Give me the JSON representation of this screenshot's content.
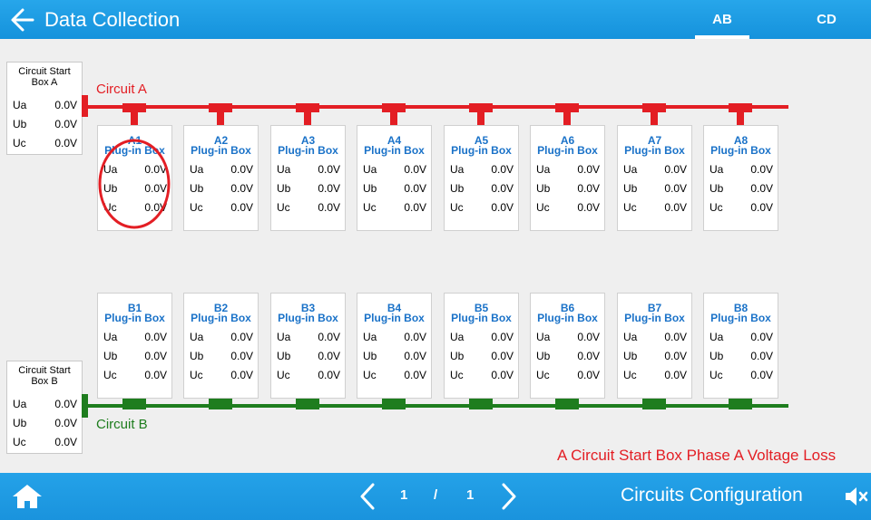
{
  "header": {
    "title": "Data Collection",
    "tabs": [
      {
        "label": "AB",
        "active": true
      },
      {
        "label": "CD",
        "active": false
      }
    ]
  },
  "colors": {
    "header": "#1a9ae2",
    "circuit_a": "#e31e24",
    "circuit_b": "#1e7d1e",
    "box_text": "#1a72c8",
    "ellipse": "#e31e24"
  },
  "start_boxes": [
    {
      "id": "a",
      "title_line1": "Circuit Start",
      "title_line2": "Box A",
      "phases": [
        {
          "label": "Ua",
          "value": "0.0V"
        },
        {
          "label": "Ub",
          "value": "0.0V"
        },
        {
          "label": "Uc",
          "value": "0.0V"
        }
      ]
    },
    {
      "id": "b",
      "title_line1": "Circuit Start",
      "title_line2": "Box B",
      "phases": [
        {
          "label": "Ua",
          "value": "0.0V"
        },
        {
          "label": "Ub",
          "value": "0.0V"
        },
        {
          "label": "Uc",
          "value": "0.0V"
        }
      ]
    }
  ],
  "circuits": [
    {
      "label": "Circuit A",
      "boxes": [
        {
          "id": "A1",
          "name": "Plug-in Box",
          "phases": [
            {
              "label": "Ua",
              "value": "0.0V"
            },
            {
              "label": "Ub",
              "value": "0.0V"
            },
            {
              "label": "Uc",
              "value": "0.0V"
            }
          ]
        },
        {
          "id": "A2",
          "name": "Plug-in Box",
          "phases": [
            {
              "label": "Ua",
              "value": "0.0V"
            },
            {
              "label": "Ub",
              "value": "0.0V"
            },
            {
              "label": "Uc",
              "value": "0.0V"
            }
          ]
        },
        {
          "id": "A3",
          "name": "Plug-in Box",
          "phases": [
            {
              "label": "Ua",
              "value": "0.0V"
            },
            {
              "label": "Ub",
              "value": "0.0V"
            },
            {
              "label": "Uc",
              "value": "0.0V"
            }
          ]
        },
        {
          "id": "A4",
          "name": "Plug-in Box",
          "phases": [
            {
              "label": "Ua",
              "value": "0.0V"
            },
            {
              "label": "Ub",
              "value": "0.0V"
            },
            {
              "label": "Uc",
              "value": "0.0V"
            }
          ]
        },
        {
          "id": "A5",
          "name": "Plug-in Box",
          "phases": [
            {
              "label": "Ua",
              "value": "0.0V"
            },
            {
              "label": "Ub",
              "value": "0.0V"
            },
            {
              "label": "Uc",
              "value": "0.0V"
            }
          ]
        },
        {
          "id": "A6",
          "name": "Plug-in Box",
          "phases": [
            {
              "label": "Ua",
              "value": "0.0V"
            },
            {
              "label": "Ub",
              "value": "0.0V"
            },
            {
              "label": "Uc",
              "value": "0.0V"
            }
          ]
        },
        {
          "id": "A7",
          "name": "Plug-in Box",
          "phases": [
            {
              "label": "Ua",
              "value": "0.0V"
            },
            {
              "label": "Ub",
              "value": "0.0V"
            },
            {
              "label": "Uc",
              "value": "0.0V"
            }
          ]
        },
        {
          "id": "A8",
          "name": "Plug-in Box",
          "phases": [
            {
              "label": "Ua",
              "value": "0.0V"
            },
            {
              "label": "Ub",
              "value": "0.0V"
            },
            {
              "label": "Uc",
              "value": "0.0V"
            }
          ]
        }
      ]
    },
    {
      "label": "Circuit B",
      "boxes": [
        {
          "id": "B1",
          "name": "Plug-in Box",
          "phases": [
            {
              "label": "Ua",
              "value": "0.0V"
            },
            {
              "label": "Ub",
              "value": "0.0V"
            },
            {
              "label": "Uc",
              "value": "0.0V"
            }
          ]
        },
        {
          "id": "B2",
          "name": "Plug-in Box",
          "phases": [
            {
              "label": "Ua",
              "value": "0.0V"
            },
            {
              "label": "Ub",
              "value": "0.0V"
            },
            {
              "label": "Uc",
              "value": "0.0V"
            }
          ]
        },
        {
          "id": "B3",
          "name": "Plug-in Box",
          "phases": [
            {
              "label": "Ua",
              "value": "0.0V"
            },
            {
              "label": "Ub",
              "value": "0.0V"
            },
            {
              "label": "Uc",
              "value": "0.0V"
            }
          ]
        },
        {
          "id": "B4",
          "name": "Plug-in Box",
          "phases": [
            {
              "label": "Ua",
              "value": "0.0V"
            },
            {
              "label": "Ub",
              "value": "0.0V"
            },
            {
              "label": "Uc",
              "value": "0.0V"
            }
          ]
        },
        {
          "id": "B5",
          "name": "Plug-in Box",
          "phases": [
            {
              "label": "Ua",
              "value": "0.0V"
            },
            {
              "label": "Ub",
              "value": "0.0V"
            },
            {
              "label": "Uc",
              "value": "0.0V"
            }
          ]
        },
        {
          "id": "B6",
          "name": "Plug-in Box",
          "phases": [
            {
              "label": "Ua",
              "value": "0.0V"
            },
            {
              "label": "Ub",
              "value": "0.0V"
            },
            {
              "label": "Uc",
              "value": "0.0V"
            }
          ]
        },
        {
          "id": "B7",
          "name": "Plug-in Box",
          "phases": [
            {
              "label": "Ua",
              "value": "0.0V"
            },
            {
              "label": "Ub",
              "value": "0.0V"
            },
            {
              "label": "Uc",
              "value": "0.0V"
            }
          ]
        },
        {
          "id": "B8",
          "name": "Plug-in Box",
          "phases": [
            {
              "label": "Ua",
              "value": "0.0V"
            },
            {
              "label": "Ub",
              "value": "0.0V"
            },
            {
              "label": "Uc",
              "value": "0.0V"
            }
          ]
        }
      ]
    }
  ],
  "status": {
    "message": "A Circuit Start Box Phase A Voltage Loss"
  },
  "footer": {
    "page_current": "1",
    "page_separator": "/",
    "page_total": "1",
    "config_label": "Circuits Configuration",
    "icons": {
      "home": "home-icon",
      "prev": "chevron-left-icon",
      "next": "chevron-right-icon",
      "sound": "speaker-mute-icon",
      "back": "arrow-left-icon"
    }
  }
}
